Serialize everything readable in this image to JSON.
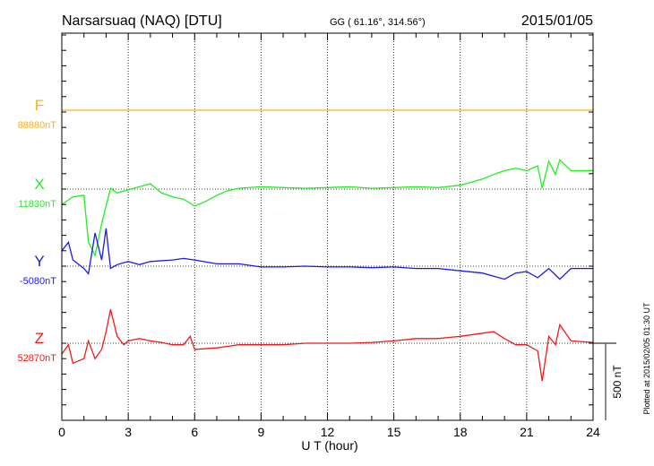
{
  "header": {
    "station": "Narsarsuaq (NAQ)  [DTU]",
    "coords": "GG ( 61.16°, 314.56°)",
    "date": "2015/01/05"
  },
  "footer": {
    "plotted_at": "Plotted at 2015/02/05 01:30 UT",
    "scale_label": "500 nT"
  },
  "chart_data": {
    "type": "line",
    "title": "Narsarsuaq (NAQ)  [DTU]",
    "xlabel": "U T (hour)",
    "xlim": [
      0,
      24
    ],
    "xticks": [
      "0",
      "3",
      "6",
      "9",
      "12",
      "15",
      "18",
      "21",
      "24"
    ],
    "scale_nT": 500,
    "grid": true,
    "series": [
      {
        "name": "F",
        "baseline_label": "88880nT",
        "color": "#f5b020",
        "x": [
          0,
          24
        ],
        "dev_nT": [
          0,
          0
        ]
      },
      {
        "name": "X",
        "baseline_label": "11830nT",
        "color": "#22ee22",
        "x": [
          0,
          0.5,
          1,
          1.2,
          1.5,
          1.8,
          2,
          2.2,
          2.5,
          3,
          3.5,
          4,
          4.5,
          5,
          5.5,
          6,
          6.5,
          7,
          7.5,
          8,
          9,
          10,
          11,
          12,
          13,
          14,
          15,
          16,
          17,
          18,
          19,
          19.5,
          20,
          20.5,
          21,
          21.5,
          21.7,
          22,
          22.3,
          22.5,
          23,
          24
        ],
        "dev_nT": [
          -100,
          -50,
          -40,
          -345,
          -430,
          -225,
          -110,
          5,
          -25,
          -5,
          15,
          35,
          -25,
          -50,
          -65,
          -110,
          -80,
          -40,
          -10,
          5,
          15,
          10,
          5,
          10,
          15,
          5,
          10,
          15,
          10,
          25,
          65,
          95,
          120,
          135,
          120,
          150,
          5,
          180,
          95,
          190,
          120,
          120
        ]
      },
      {
        "name": "Y",
        "baseline_label": "-5080nT",
        "color": "#1a1aee",
        "x": [
          0,
          0.3,
          0.5,
          1,
          1.2,
          1.5,
          1.8,
          2,
          2.2,
          2.5,
          3,
          3.5,
          4,
          5,
          5.5,
          6,
          7,
          8,
          9,
          10,
          11,
          12,
          13,
          14,
          15,
          16,
          17,
          18,
          19,
          20,
          20.5,
          21,
          21.5,
          22,
          22.5,
          23,
          24
        ],
        "dev_nT": [
          100,
          155,
          40,
          -15,
          -50,
          215,
          40,
          245,
          -15,
          10,
          30,
          10,
          30,
          40,
          50,
          40,
          15,
          15,
          -5,
          -5,
          0,
          -5,
          -5,
          -10,
          -5,
          -15,
          -15,
          -30,
          -45,
          -85,
          -45,
          -35,
          -75,
          -15,
          -85,
          -15,
          -15
        ]
      },
      {
        "name": "Z",
        "baseline_label": "52870nT",
        "color": "#ee1a1a",
        "x": [
          0,
          0.3,
          0.5,
          1,
          1.2,
          1.5,
          1.8,
          2,
          2.2,
          2.5,
          2.8,
          3,
          3.5,
          4,
          4.5,
          5,
          5.5,
          5.8,
          6,
          7,
          8,
          9,
          10,
          11,
          12,
          13,
          14,
          15,
          16,
          17,
          18,
          19,
          19.5,
          20,
          20.5,
          21,
          21.5,
          21.7,
          22,
          22.3,
          22.5,
          23,
          24
        ],
        "dev_nT": [
          -70,
          -10,
          -130,
          -100,
          15,
          -100,
          -40,
          75,
          220,
          45,
          -10,
          15,
          30,
          15,
          5,
          -10,
          -10,
          45,
          -40,
          -30,
          -10,
          -10,
          -10,
          0,
          0,
          0,
          5,
          15,
          30,
          30,
          45,
          65,
          75,
          30,
          -10,
          -10,
          -50,
          -245,
          45,
          -10,
          120,
          15,
          5
        ]
      }
    ]
  }
}
